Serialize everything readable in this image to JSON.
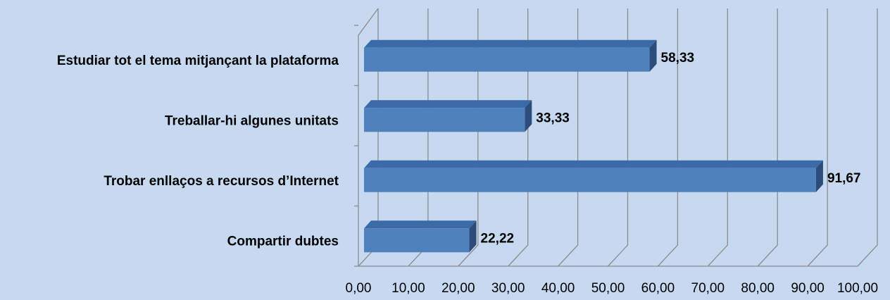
{
  "chart_data": {
    "type": "bar",
    "orientation": "horizontal",
    "three_d": true,
    "categories": [
      "Estudiar tot el tema mitjançant la plataforma",
      "Treballar-hi algunes unitats",
      "Trobar enllaços a recursos d’Internet",
      "Compartir dubtes"
    ],
    "values": [
      58.33,
      33.33,
      91.67,
      22.22
    ],
    "value_labels": [
      "58,33",
      "33,33",
      "91,67",
      "22,22"
    ],
    "xlim": [
      0,
      100
    ],
    "x_ticks": [
      "0,00",
      "10,00",
      "20,00",
      "30,00",
      "40,00",
      "50,00",
      "60,00",
      "70,00",
      "80,00",
      "90,00",
      "100,00"
    ],
    "grid": true,
    "legend": "none",
    "colors": {
      "background": "#c6d9f1",
      "bar_front": "#4f81bd",
      "bar_top": "#3a6aa8",
      "bar_side": "#2c4d7a",
      "grid": "#8c8c8c"
    }
  }
}
